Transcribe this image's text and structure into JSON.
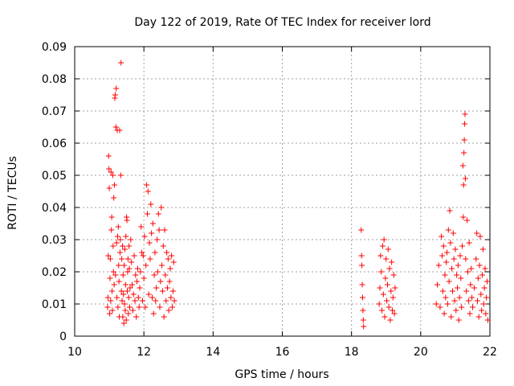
{
  "chart_data": {
    "type": "scatter",
    "title": "Day 122 of 2019, Rate Of TEC Index for receiver lord",
    "xlabel": "GPS time / hours",
    "ylabel": "ROTI / TECUs",
    "xlim": [
      10,
      22
    ],
    "ylim": [
      0,
      0.09
    ],
    "x_ticks": [
      10,
      12,
      14,
      16,
      18,
      20,
      22
    ],
    "y_ticks": [
      0,
      0.01,
      0.02,
      0.03,
      0.04,
      0.05,
      0.06,
      0.07,
      0.08,
      0.09
    ],
    "x_tick_labels": [
      "10",
      "12",
      "14",
      "16",
      "18",
      "20",
      "22"
    ],
    "y_tick_labels": [
      "0",
      "0.01",
      "0.02",
      "0.03",
      "0.04",
      "0.05",
      "0.06",
      "0.07",
      "0.08",
      "0.09"
    ],
    "grid": true,
    "marker": "plus",
    "marker_color": "#ff0000",
    "series": [
      {
        "points": [
          [
            10.95,
            0.009
          ],
          [
            10.96,
            0.012
          ],
          [
            10.97,
            0.025
          ],
          [
            10.98,
            0.056
          ],
          [
            10.99,
            0.052
          ],
          [
            11.0,
            0.046
          ],
          [
            11.01,
            0.007
          ],
          [
            11.02,
            0.018
          ],
          [
            11.03,
            0.024
          ],
          [
            11.04,
            0.011
          ],
          [
            11.05,
            0.051
          ],
          [
            11.06,
            0.033
          ],
          [
            11.07,
            0.037
          ],
          [
            11.08,
            0.014
          ],
          [
            11.09,
            0.008
          ],
          [
            11.1,
            0.05
          ],
          [
            11.11,
            0.028
          ],
          [
            11.12,
            0.02
          ],
          [
            11.13,
            0.043
          ],
          [
            11.14,
            0.016
          ],
          [
            11.15,
            0.047
          ],
          [
            11.16,
            0.074
          ],
          [
            11.17,
            0.075
          ],
          [
            11.18,
            0.019
          ],
          [
            11.19,
            0.065
          ],
          [
            11.2,
            0.077
          ],
          [
            11.21,
            0.029
          ],
          [
            11.22,
            0.012
          ],
          [
            11.23,
            0.064
          ],
          [
            11.24,
            0.031
          ],
          [
            11.25,
            0.009
          ],
          [
            11.26,
            0.034
          ],
          [
            11.27,
            0.022
          ],
          [
            11.28,
            0.017
          ],
          [
            11.29,
            0.006
          ],
          [
            11.3,
            0.064
          ],
          [
            11.31,
            0.026
          ],
          [
            11.32,
            0.03
          ],
          [
            11.33,
            0.05
          ],
          [
            11.34,
            0.085
          ],
          [
            11.35,
            0.014
          ],
          [
            11.36,
            0.024
          ],
          [
            11.37,
            0.011
          ],
          [
            11.38,
            0.028
          ],
          [
            11.39,
            0.006
          ],
          [
            11.4,
            0.019
          ],
          [
            11.41,
            0.013
          ],
          [
            11.42,
            0.004
          ],
          [
            11.43,
            0.022
          ],
          [
            11.44,
            0.01
          ],
          [
            11.45,
            0.027
          ],
          [
            11.46,
            0.008
          ],
          [
            11.47,
            0.016
          ],
          [
            11.48,
            0.031
          ],
          [
            11.49,
            0.005
          ],
          [
            11.5,
            0.037
          ],
          [
            11.51,
            0.036
          ],
          [
            11.52,
            0.014
          ],
          [
            11.53,
            0.02
          ],
          [
            11.54,
            0.024
          ],
          [
            11.55,
            0.007
          ],
          [
            11.56,
            0.012
          ],
          [
            11.57,
            0.028
          ],
          [
            11.58,
            0.021
          ],
          [
            11.59,
            0.009
          ],
          [
            11.6,
            0.015
          ],
          [
            11.62,
            0.03
          ],
          [
            11.64,
            0.023
          ],
          [
            11.66,
            0.016
          ],
          [
            11.68,
            0.008
          ],
          [
            11.7,
            0.013
          ],
          [
            11.72,
            0.025
          ],
          [
            11.74,
            0.011
          ],
          [
            11.76,
            0.019
          ],
          [
            11.78,
            0.006
          ],
          [
            11.8,
            0.017
          ],
          [
            11.82,
            0.021
          ],
          [
            11.84,
            0.012
          ],
          [
            11.86,
            0.009
          ],
          [
            11.88,
            0.015
          ],
          [
            11.9,
            0.02
          ],
          [
            11.92,
            0.034
          ],
          [
            11.94,
            0.026
          ],
          [
            11.96,
            0.011
          ],
          [
            11.98,
            0.025
          ],
          [
            12.0,
            0.018
          ],
          [
            12.02,
            0.031
          ],
          [
            12.04,
            0.009
          ],
          [
            12.06,
            0.022
          ],
          [
            12.08,
            0.047
          ],
          [
            12.1,
            0.038
          ],
          [
            12.12,
            0.045
          ],
          [
            12.14,
            0.013
          ],
          [
            12.16,
            0.029
          ],
          [
            12.18,
            0.024
          ],
          [
            12.2,
            0.041
          ],
          [
            12.22,
            0.032
          ],
          [
            12.24,
            0.012
          ],
          [
            12.26,
            0.035
          ],
          [
            12.28,
            0.007
          ],
          [
            12.3,
            0.019
          ],
          [
            12.32,
            0.026
          ],
          [
            12.34,
            0.011
          ],
          [
            12.36,
            0.015
          ],
          [
            12.38,
            0.03
          ],
          [
            12.4,
            0.02
          ],
          [
            12.42,
            0.038
          ],
          [
            12.44,
            0.033
          ],
          [
            12.46,
            0.009
          ],
          [
            12.48,
            0.017
          ],
          [
            12.5,
            0.04
          ],
          [
            12.52,
            0.022
          ],
          [
            12.54,
            0.014
          ],
          [
            12.56,
            0.028
          ],
          [
            12.58,
            0.006
          ],
          [
            12.6,
            0.033
          ],
          [
            12.62,
            0.019
          ],
          [
            12.64,
            0.011
          ],
          [
            12.66,
            0.026
          ],
          [
            12.68,
            0.015
          ],
          [
            12.7,
            0.024
          ],
          [
            12.72,
            0.008
          ],
          [
            12.74,
            0.017
          ],
          [
            12.76,
            0.021
          ],
          [
            12.78,
            0.012
          ],
          [
            12.8,
            0.025
          ],
          [
            12.82,
            0.009
          ],
          [
            12.84,
            0.014
          ],
          [
            12.86,
            0.023
          ],
          [
            12.88,
            0.011
          ],
          [
            18.28,
            0.033
          ],
          [
            18.29,
            0.025
          ],
          [
            18.3,
            0.022
          ],
          [
            18.31,
            0.016
          ],
          [
            18.32,
            0.012
          ],
          [
            18.33,
            0.008
          ],
          [
            18.34,
            0.005
          ],
          [
            18.35,
            0.003
          ],
          [
            18.8,
            0.01
          ],
          [
            18.82,
            0.015
          ],
          [
            18.84,
            0.025
          ],
          [
            18.86,
            0.02
          ],
          [
            18.88,
            0.008
          ],
          [
            18.9,
            0.028
          ],
          [
            18.92,
            0.013
          ],
          [
            18.94,
            0.03
          ],
          [
            18.96,
            0.006
          ],
          [
            18.98,
            0.018
          ],
          [
            19.0,
            0.024
          ],
          [
            19.02,
            0.011
          ],
          [
            19.04,
            0.016
          ],
          [
            19.06,
            0.027
          ],
          [
            19.08,
            0.009
          ],
          [
            19.1,
            0.021
          ],
          [
            19.12,
            0.005
          ],
          [
            19.14,
            0.014
          ],
          [
            19.16,
            0.023
          ],
          [
            19.18,
            0.008
          ],
          [
            19.2,
            0.012
          ],
          [
            19.22,
            0.019
          ],
          [
            19.24,
            0.007
          ],
          [
            19.26,
            0.015
          ],
          [
            20.45,
            0.01
          ],
          [
            20.48,
            0.016
          ],
          [
            20.52,
            0.022
          ],
          [
            20.56,
            0.009
          ],
          [
            20.6,
            0.031
          ],
          [
            20.62,
            0.025
          ],
          [
            20.64,
            0.014
          ],
          [
            20.66,
            0.028
          ],
          [
            20.68,
            0.007
          ],
          [
            20.7,
            0.019
          ],
          [
            20.72,
            0.012
          ],
          [
            20.74,
            0.023
          ],
          [
            20.76,
            0.026
          ],
          [
            20.78,
            0.01
          ],
          [
            20.8,
            0.033
          ],
          [
            20.82,
            0.017
          ],
          [
            20.84,
            0.039
          ],
          [
            20.86,
            0.029
          ],
          [
            20.88,
            0.006
          ],
          [
            20.9,
            0.021
          ],
          [
            20.92,
            0.014
          ],
          [
            20.94,
            0.032
          ],
          [
            20.96,
            0.024
          ],
          [
            20.98,
            0.011
          ],
          [
            21.0,
            0.027
          ],
          [
            21.02,
            0.008
          ],
          [
            21.04,
            0.019
          ],
          [
            21.06,
            0.015
          ],
          [
            21.08,
            0.022
          ],
          [
            21.1,
            0.005
          ],
          [
            21.12,
            0.012
          ],
          [
            21.14,
            0.025
          ],
          [
            21.16,
            0.018
          ],
          [
            21.18,
            0.009
          ],
          [
            21.2,
            0.028
          ],
          [
            21.22,
            0.053
          ],
          [
            21.23,
            0.037
          ],
          [
            21.24,
            0.047
          ],
          [
            21.25,
            0.057
          ],
          [
            21.26,
            0.061
          ],
          [
            21.27,
            0.066
          ],
          [
            21.28,
            0.069
          ],
          [
            21.29,
            0.049
          ],
          [
            21.3,
            0.024
          ],
          [
            21.32,
            0.014
          ],
          [
            21.34,
            0.036
          ],
          [
            21.36,
            0.02
          ],
          [
            21.38,
            0.011
          ],
          [
            21.4,
            0.029
          ],
          [
            21.42,
            0.007
          ],
          [
            21.44,
            0.016
          ],
          [
            21.46,
            0.021
          ],
          [
            21.48,
            0.012
          ],
          [
            21.5,
            0.009
          ],
          [
            21.55,
            0.015
          ],
          [
            21.6,
            0.024
          ],
          [
            21.62,
            0.032
          ],
          [
            21.64,
            0.011
          ],
          [
            21.66,
            0.018
          ],
          [
            21.68,
            0.006
          ],
          [
            21.7,
            0.022
          ],
          [
            21.72,
            0.031
          ],
          [
            21.74,
            0.013
          ],
          [
            21.76,
            0.008
          ],
          [
            21.78,
            0.019
          ],
          [
            21.8,
            0.027
          ],
          [
            21.82,
            0.01
          ],
          [
            21.84,
            0.015
          ],
          [
            21.86,
            0.021
          ],
          [
            21.88,
            0.007
          ],
          [
            21.9,
            0.012
          ],
          [
            21.92,
            0.017
          ],
          [
            21.94,
            0.005
          ]
        ]
      }
    ]
  }
}
